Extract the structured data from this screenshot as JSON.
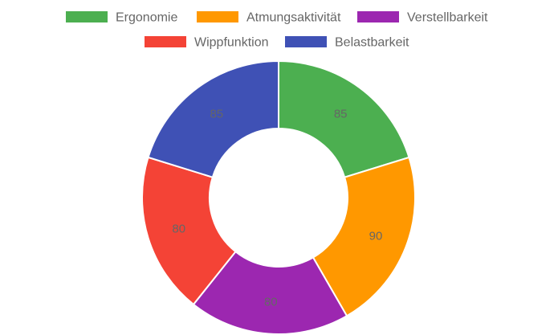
{
  "chart_data": {
    "type": "doughnut",
    "categories": [
      "Ergonomie",
      "Atmungsaktivität",
      "Verstellbarkeit",
      "Wippfunktion",
      "Belastbarkeit"
    ],
    "values": [
      85,
      90,
      80,
      80,
      85
    ],
    "colors": [
      "#4caf50",
      "#ff9800",
      "#9c27b0",
      "#f44336",
      "#3f51b5"
    ],
    "legend_position": "top",
    "data_labels": true
  }
}
